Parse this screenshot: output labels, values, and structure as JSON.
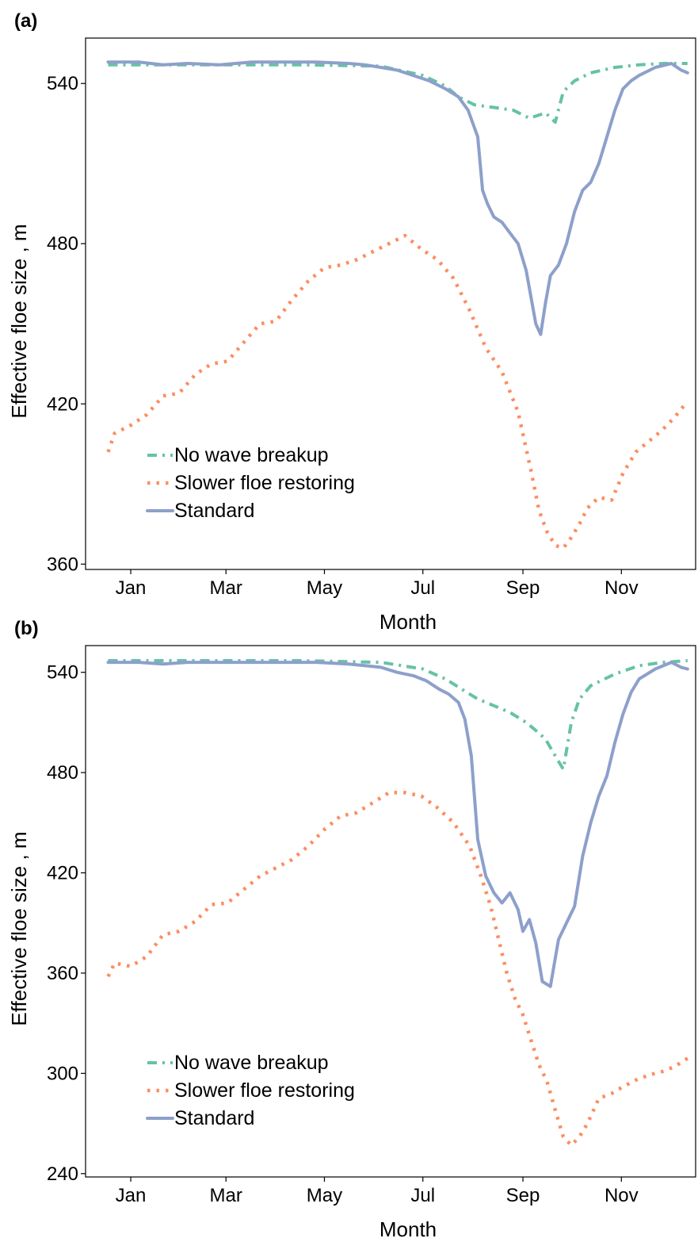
{
  "chart_data": [
    {
      "panel": "(a)",
      "type": "line",
      "xlabel": "Month",
      "ylabel": "Effective floe size , m",
      "x_ticks": [
        "Jan",
        "Mar",
        "May",
        "Jul",
        "Sep",
        "Nov"
      ],
      "x_tick_doy": [
        15,
        74,
        135,
        196,
        258,
        319
      ],
      "y_ticks": [
        360,
        420,
        480,
        540
      ],
      "ylim": [
        358,
        557
      ],
      "xlim": [
        -13,
        365
      ],
      "legend_position": "bottom-left",
      "series": [
        {
          "name": "No wave breakup",
          "style": "dashdot",
          "color": "#66c2a5",
          "x": [
            1,
            60,
            120,
            170,
            196,
            210,
            218,
            228,
            240,
            252,
            262,
            272,
            278,
            283,
            290,
            300,
            315,
            330,
            345,
            360
          ],
          "y": [
            547,
            547,
            547,
            546.5,
            543,
            539,
            535,
            532,
            531,
            530,
            527,
            529,
            525.5,
            537,
            541,
            544,
            546,
            547,
            547.5,
            547.5
          ]
        },
        {
          "name": "Slower floe restoring",
          "style": "dotted",
          "color": "#fc8d62",
          "x": [
            1,
            5,
            15,
            25,
            35,
            45,
            55,
            65,
            75,
            85,
            95,
            105,
            115,
            125,
            135,
            145,
            155,
            165,
            175,
            185,
            195,
            205,
            215,
            225,
            235,
            245,
            255,
            263,
            268,
            273,
            278,
            283,
            288,
            293,
            298,
            305,
            313,
            320,
            328,
            336,
            344,
            352,
            360
          ],
          "y": [
            402,
            409,
            412,
            416,
            423,
            424,
            431,
            435,
            436,
            443,
            450,
            451,
            459,
            466,
            471,
            472,
            474,
            477,
            480,
            483,
            478,
            474,
            467,
            455,
            441,
            432,
            417,
            395,
            380,
            372,
            367,
            366,
            370,
            375,
            381,
            385,
            384,
            394,
            402,
            406,
            410,
            415,
            421
          ]
        },
        {
          "name": "Standard",
          "style": "solid",
          "color": "#8da0cb",
          "x": [
            1,
            20,
            35,
            50,
            70,
            90,
            110,
            130,
            150,
            160,
            170,
            180,
            190,
            200,
            210,
            218,
            224,
            230,
            233,
            236,
            240,
            245,
            250,
            255,
            260,
            263,
            266,
            269,
            272,
            275,
            280,
            285,
            290,
            295,
            300,
            305,
            310,
            315,
            320,
            325,
            330,
            340,
            350,
            356,
            360
          ],
          "y": [
            548,
            548,
            547,
            547.5,
            547,
            548,
            548,
            548,
            547.5,
            547,
            546,
            545,
            543,
            541,
            538,
            535,
            530,
            520,
            500,
            495,
            490,
            488,
            484,
            480,
            470,
            460,
            450,
            446,
            458,
            468,
            472,
            480,
            492,
            500,
            503,
            510,
            520,
            530,
            538,
            541,
            543,
            546,
            547.5,
            545,
            544
          ]
        }
      ]
    },
    {
      "panel": "(b)",
      "type": "line",
      "xlabel": "Month",
      "ylabel": "Effective floe size , m",
      "x_ticks": [
        "Jan",
        "Mar",
        "May",
        "Jul",
        "Sep",
        "Nov"
      ],
      "x_tick_doy": [
        15,
        74,
        135,
        196,
        258,
        319
      ],
      "y_ticks": [
        240,
        300,
        360,
        420,
        480,
        540
      ],
      "ylim": [
        238,
        556
      ],
      "xlim": [
        -13,
        365
      ],
      "legend_position": "bottom-left",
      "series": [
        {
          "name": "No wave breakup",
          "style": "dashdot",
          "color": "#66c2a5",
          "x": [
            1,
            60,
            120,
            170,
            196,
            210,
            220,
            230,
            240,
            250,
            260,
            265,
            272,
            278,
            283,
            288,
            293,
            300,
            315,
            330,
            345,
            360
          ],
          "y": [
            547,
            547,
            547,
            546,
            542,
            536,
            530,
            524,
            520,
            516,
            510,
            506,
            500,
            490,
            482,
            510,
            524,
            532,
            539,
            544,
            546,
            547
          ]
        },
        {
          "name": "Slower floe restoring",
          "style": "dotted",
          "color": "#fc8d62",
          "x": [
            1,
            5,
            15,
            25,
            35,
            45,
            55,
            65,
            75,
            85,
            95,
            105,
            115,
            125,
            135,
            145,
            155,
            165,
            175,
            185,
            195,
            205,
            215,
            225,
            232,
            238,
            243,
            248,
            253,
            258,
            263,
            268,
            273,
            278,
            283,
            288,
            293,
            298,
            305,
            313,
            320,
            328,
            336,
            344,
            352,
            360
          ],
          "y": [
            358,
            366,
            364,
            370,
            383,
            385,
            391,
            401,
            402,
            410,
            418,
            423,
            428,
            436,
            446,
            454,
            456,
            462,
            468,
            468,
            466,
            459,
            450,
            436,
            418,
            400,
            380,
            360,
            345,
            335,
            320,
            305,
            295,
            278,
            262,
            257,
            262,
            270,
            285,
            288,
            292,
            296,
            299,
            301,
            304,
            309
          ]
        },
        {
          "name": "Standard",
          "style": "solid",
          "color": "#8da0cb",
          "x": [
            1,
            20,
            35,
            50,
            70,
            90,
            110,
            130,
            150,
            160,
            170,
            180,
            190,
            198,
            206,
            212,
            218,
            222,
            226,
            230,
            235,
            240,
            245,
            250,
            255,
            258,
            262,
            266,
            270,
            275,
            280,
            285,
            290,
            295,
            300,
            305,
            310,
            315,
            320,
            325,
            330,
            340,
            350,
            356,
            360
          ],
          "y": [
            546,
            546,
            545,
            546,
            546,
            546,
            546,
            546,
            545,
            544,
            543,
            540,
            538,
            535,
            530,
            527,
            522,
            512,
            490,
            440,
            418,
            408,
            402,
            408,
            398,
            385,
            392,
            378,
            355,
            352,
            380,
            390,
            400,
            430,
            450,
            466,
            478,
            498,
            515,
            528,
            536,
            542,
            546,
            543,
            542
          ]
        }
      ]
    }
  ]
}
